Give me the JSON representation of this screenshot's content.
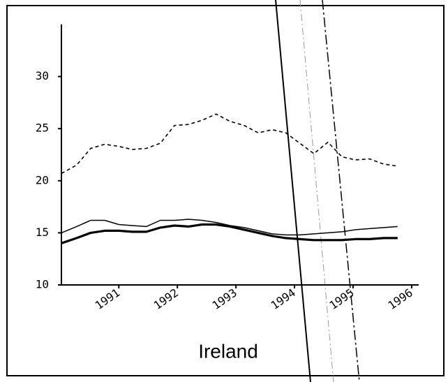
{
  "chart_data": {
    "type": "line",
    "title": "Ireland",
    "x": [
      1990.02,
      1990.28,
      1990.52,
      1990.76,
      1991.0,
      1991.23,
      1991.47,
      1991.71,
      1991.95,
      1992.19,
      1992.42,
      1992.66,
      1992.9,
      1993.14,
      1993.38,
      1993.62,
      1993.85,
      1994.09,
      1994.33,
      1994.57,
      1994.81,
      1995.04,
      1995.28,
      1995.52,
      1995.76
    ],
    "series": [
      {
        "color": "#000000",
        "style": "dashed",
        "values": [
          20.7,
          21.5,
          23.1,
          23.5,
          23.3,
          23.0,
          23.1,
          23.6,
          25.3,
          25.4,
          25.8,
          26.4,
          25.7,
          25.3,
          24.6,
          24.9,
          24.6,
          23.6,
          22.6,
          23.7,
          22.3,
          22.0,
          22.1,
          21.6,
          21.4
        ]
      },
      {
        "color": "#000000",
        "style": "thin",
        "values": [
          15.0,
          15.6,
          16.2,
          16.2,
          15.8,
          15.7,
          15.6,
          16.2,
          16.2,
          16.3,
          16.2,
          16.0,
          15.7,
          15.5,
          15.2,
          14.9,
          14.8,
          14.8,
          14.9,
          15.0,
          15.1,
          15.3,
          15.4,
          15.5,
          15.6
        ]
      },
      {
        "color": "#000000",
        "style": "thick",
        "values": [
          14.0,
          14.5,
          15.0,
          15.2,
          15.2,
          15.1,
          15.1,
          15.5,
          15.7,
          15.6,
          15.8,
          15.8,
          15.6,
          15.3,
          15.0,
          14.7,
          14.5,
          14.4,
          14.3,
          14.3,
          14.3,
          14.4,
          14.4,
          14.5,
          14.5
        ]
      }
    ],
    "xlim": [
      1990.02,
      1996.12
    ],
    "xticks": [
      1991,
      1992,
      1993,
      1994,
      1995,
      1996
    ],
    "ylim": [
      10,
      35
    ],
    "yticks": [
      10,
      15,
      20,
      25,
      30
    ],
    "grid": false
  }
}
